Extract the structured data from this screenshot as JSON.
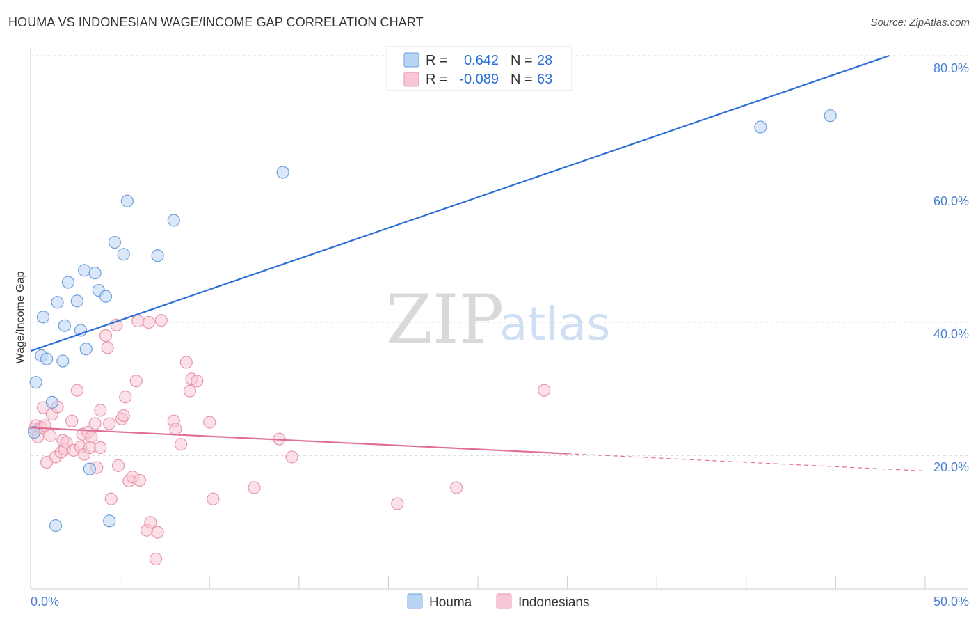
{
  "header": {
    "title": "HOUMA VS INDONESIAN WAGE/INCOME GAP CORRELATION CHART",
    "source": "Source: ZipAtlas.com"
  },
  "legend": {
    "r_label": "R =",
    "n_label": "N =",
    "houma": {
      "r": "0.642",
      "n": "28"
    },
    "indonesians": {
      "r": "-0.089",
      "n": "63"
    }
  },
  "watermark": {
    "zip": "ZIP",
    "atlas": "atlas"
  },
  "colors": {
    "houma_fill": "#b9d3f3",
    "houma_stroke": "#6e9fdc",
    "houma_line": "#2b6fd6",
    "indo_fill": "#f8c6d4",
    "indo_stroke": "#e896ad",
    "indo_line": "#e06e96",
    "grid": "#dddddd",
    "tick_text": "#4a7fd0"
  },
  "chart_data": {
    "type": "scatter",
    "title": "HOUMA VS INDONESIAN WAGE/INCOME GAP CORRELATION CHART",
    "xlabel": "",
    "ylabel": "Wage/Income Gap",
    "xlim": [
      0,
      50
    ],
    "ylim": [
      0,
      80
    ],
    "x_tick_labels": [
      "0.0%",
      "50.0%"
    ],
    "y_ticks": [
      20,
      40,
      60,
      80
    ],
    "y_tick_labels": [
      "20.0%",
      "40.0%",
      "60.0%",
      "80.0%"
    ],
    "grid": true,
    "legend_position": "top-center",
    "series": [
      {
        "name": "Houma",
        "r": 0.642,
        "n": 28,
        "points": [
          [
            0.2,
            23.5
          ],
          [
            0.3,
            31.0
          ],
          [
            0.6,
            35.0
          ],
          [
            0.7,
            40.8
          ],
          [
            0.9,
            34.5
          ],
          [
            1.2,
            28.0
          ],
          [
            1.4,
            9.5
          ],
          [
            1.5,
            43.0
          ],
          [
            1.8,
            34.2
          ],
          [
            1.9,
            39.5
          ],
          [
            2.1,
            46.0
          ],
          [
            2.6,
            43.2
          ],
          [
            2.8,
            38.8
          ],
          [
            3.0,
            47.8
          ],
          [
            3.1,
            36.0
          ],
          [
            3.3,
            18.0
          ],
          [
            3.6,
            47.4
          ],
          [
            3.8,
            44.8
          ],
          [
            4.2,
            43.9
          ],
          [
            4.4,
            10.2
          ],
          [
            4.7,
            52.0
          ],
          [
            5.2,
            50.2
          ],
          [
            5.4,
            58.2
          ],
          [
            7.1,
            50.0
          ],
          [
            8.0,
            55.3
          ],
          [
            14.1,
            62.5
          ],
          [
            40.8,
            69.3
          ],
          [
            44.7,
            71.0
          ]
        ],
        "trend": {
          "x": [
            0,
            48.0
          ],
          "y": [
            35.7,
            80.0
          ],
          "dashed": false
        }
      },
      {
        "name": "Indonesians",
        "r": -0.089,
        "n": 63,
        "points": [
          [
            0.2,
            24.0
          ],
          [
            0.3,
            24.5
          ],
          [
            0.4,
            22.8
          ],
          [
            0.6,
            24.2
          ],
          [
            0.7,
            27.2
          ],
          [
            0.8,
            24.5
          ],
          [
            0.9,
            19.0
          ],
          [
            1.1,
            23.0
          ],
          [
            1.2,
            26.2
          ],
          [
            1.4,
            19.8
          ],
          [
            1.5,
            27.3
          ],
          [
            1.7,
            20.5
          ],
          [
            1.8,
            22.3
          ],
          [
            1.9,
            21.0
          ],
          [
            2.0,
            22.0
          ],
          [
            2.3,
            25.2
          ],
          [
            2.4,
            20.8
          ],
          [
            2.6,
            29.8
          ],
          [
            2.8,
            21.3
          ],
          [
            2.9,
            23.2
          ],
          [
            3.0,
            20.2
          ],
          [
            3.2,
            23.5
          ],
          [
            3.3,
            21.2
          ],
          [
            3.4,
            22.8
          ],
          [
            3.6,
            24.8
          ],
          [
            3.7,
            18.2
          ],
          [
            3.9,
            21.2
          ],
          [
            3.9,
            26.8
          ],
          [
            4.2,
            38.0
          ],
          [
            4.3,
            36.2
          ],
          [
            4.4,
            24.8
          ],
          [
            4.5,
            13.5
          ],
          [
            4.8,
            39.6
          ],
          [
            4.9,
            18.5
          ],
          [
            5.1,
            25.5
          ],
          [
            5.2,
            26.0
          ],
          [
            5.3,
            28.8
          ],
          [
            5.5,
            16.2
          ],
          [
            5.7,
            16.8
          ],
          [
            5.9,
            31.2
          ],
          [
            6.0,
            40.2
          ],
          [
            6.1,
            16.3
          ],
          [
            6.5,
            8.8
          ],
          [
            6.6,
            40.0
          ],
          [
            6.7,
            10.0
          ],
          [
            7.0,
            4.5
          ],
          [
            7.1,
            8.5
          ],
          [
            7.3,
            40.3
          ],
          [
            8.0,
            25.2
          ],
          [
            8.1,
            24.0
          ],
          [
            8.4,
            21.7
          ],
          [
            8.7,
            34.0
          ],
          [
            8.9,
            29.7
          ],
          [
            9.0,
            31.5
          ],
          [
            9.3,
            31.2
          ],
          [
            10.0,
            25.0
          ],
          [
            10.2,
            13.5
          ],
          [
            12.5,
            15.2
          ],
          [
            13.9,
            22.5
          ],
          [
            14.6,
            19.8
          ],
          [
            20.5,
            12.8
          ],
          [
            23.8,
            15.2
          ],
          [
            28.7,
            29.8
          ]
        ],
        "trend": {
          "x": [
            0,
            30.0
          ],
          "y": [
            24.2,
            20.3
          ],
          "dashed": false
        },
        "trend_extension": {
          "x": [
            30.0,
            50.0
          ],
          "y": [
            20.3,
            17.7
          ],
          "dashed": true
        }
      }
    ]
  },
  "bottom_legend": {
    "houma": "Houma",
    "indonesians": "Indonesians"
  }
}
